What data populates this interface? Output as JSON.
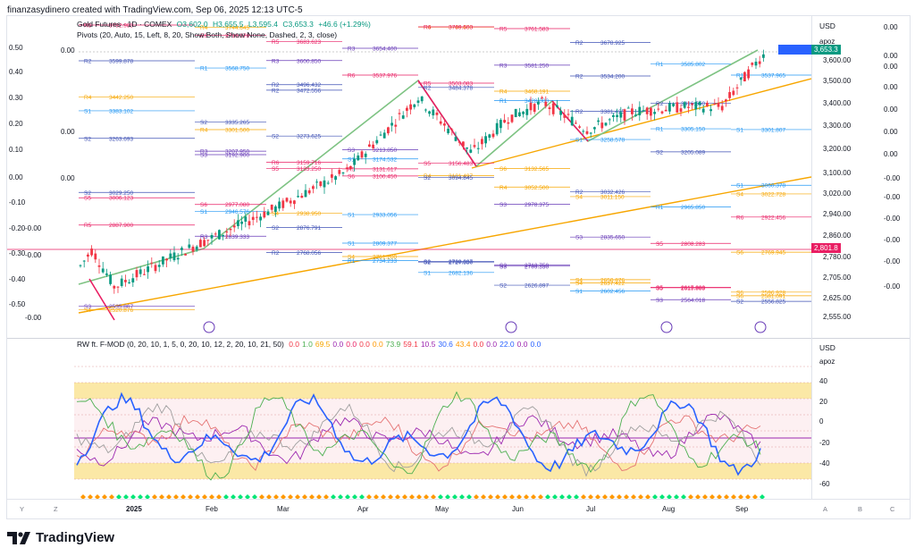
{
  "header": {
    "text": "finanzasydinero created with TradingView.com, Sep 06, 2025 12:13 UTC-5"
  },
  "legend": {
    "title": "Gold Futures · 1D · COMEX",
    "open": "O3,602.0",
    "high": "H3,655.5",
    "low": "L3,595.4",
    "close": "C3,653.3",
    "change": "+46.6 (+1.29%)",
    "pivots": "Pivots (20, Auto, 15, Left, 8, 20, Show Both, Show None, Dashed, 2, 3, close)"
  },
  "osc_legend": {
    "name": "RW ft. F-MOD (0, 20, 10, 1, 5, 0, 20, 10, 12, 2, 20, 10, 21, 50)",
    "values": [
      {
        "v": "0.0",
        "c": "#f23645"
      },
      {
        "v": "1.0",
        "c": "#4caf50"
      },
      {
        "v": "69.5",
        "c": "#f7a600"
      },
      {
        "v": "0.0",
        "c": "#9c27b0"
      },
      {
        "v": "0.0",
        "c": "#e91e63"
      },
      {
        "v": "0.0",
        "c": "#f23645"
      },
      {
        "v": "0.0",
        "c": "#ff9800"
      },
      {
        "v": "73.9",
        "c": "#4caf50"
      },
      {
        "v": "59.1",
        "c": "#f23645"
      },
      {
        "v": "10.5",
        "c": "#9c27b0"
      },
      {
        "v": "30.6",
        "c": "#2962ff"
      },
      {
        "v": "43.4",
        "c": "#ff9800"
      },
      {
        "v": "0.0",
        "c": "#f23645"
      },
      {
        "v": "0.0",
        "c": "#9c27b0"
      },
      {
        "v": "22.0",
        "c": "#2962ff"
      },
      {
        "v": "0.0",
        "c": "#9c27b0"
      },
      {
        "v": "0.0",
        "c": "#2962ff"
      }
    ]
  },
  "right_axis": {
    "currency": "USD",
    "scale": "apoz",
    "prices": [
      "3,600.00",
      "3,500.00",
      "3,400.00",
      "3,300.00",
      "3,200.00",
      "3,100.00",
      "3,020.00",
      "2,940.00",
      "2,860.00",
      "2,780.00",
      "2,705.00",
      "2,625.00",
      "2,555.00"
    ],
    "current_tag": "3,653.3",
    "current_sub": "17:20:25",
    "pivot_tag": "2,801.8",
    "osc_ticks": [
      "40",
      "20",
      "0",
      "-20",
      "-40",
      "-60"
    ],
    "outer_values": [
      "0.00",
      "0.00",
      "0.00",
      "0.00",
      "0.00",
      "0.00",
      "0.00",
      "-0.00",
      "-0.00",
      "-0.00",
      "-0.00",
      "-0.00",
      "-0.00"
    ]
  },
  "left_scale": [
    "0.50",
    "0.40",
    "0.30",
    "0.20",
    "0.10",
    "0.00",
    "-0.10",
    "-0.20",
    "-0.30",
    "-0.40",
    "-0.50"
  ],
  "left_zero_labels": [
    "0.00",
    "0.00",
    "0.00",
    "-0.00",
    "-0.00",
    "-0.00"
  ],
  "x_axis": {
    "labels": [
      "2025",
      "Feb",
      "Mar",
      "Apr",
      "May",
      "Jun",
      "Jul",
      "Aug",
      "Sep"
    ],
    "corner_left": [
      "Y",
      "Z"
    ],
    "corner_right": [
      "A",
      "B",
      "C"
    ]
  },
  "pivot_labels": [
    {
      "t": "R4",
      "p": "3442.250",
      "c": "#f7a600"
    },
    {
      "t": "R3",
      "p": "3207.950",
      "c": "#673ab7"
    },
    {
      "t": "R6",
      "p": "3159.716",
      "c": "#e91e63"
    },
    {
      "t": "R5",
      "p": "3131.617",
      "c": "#e91e63"
    },
    {
      "t": "R4",
      "p": "3101.497",
      "c": "#f7a600"
    },
    {
      "t": "R4",
      "p": "3052.500",
      "c": "#f7a600"
    },
    {
      "t": "R2",
      "p": "3032.426",
      "c": "#3f51b5"
    },
    {
      "t": "R1",
      "p": "2965.850",
      "c": "#2196f3"
    },
    {
      "t": "R6",
      "p": "2922.456",
      "c": "#e91e63"
    },
    {
      "t": "R5",
      "p": "2887.900",
      "c": "#e91e63"
    },
    {
      "t": "R3",
      "p": "2839.333",
      "c": "#673ab7"
    },
    {
      "t": "R2",
      "p": "2768.056",
      "c": "#3f51b5"
    },
    {
      "t": "R1",
      "p": "2734.233",
      "c": "#2196f3"
    },
    {
      "t": "S1",
      "p": "2682.136",
      "c": "#2196f3"
    },
    {
      "t": "S2",
      "p": "2626.897",
      "c": "#3f51b5"
    },
    {
      "t": "S1",
      "p": "2602.456",
      "c": "#2196f3"
    },
    {
      "t": "S3",
      "p": "2564.018",
      "c": "#673ab7"
    },
    {
      "t": "S2",
      "p": "2556.825",
      "c": "#3f51b5"
    },
    {
      "t": "S3",
      "p": "2535.867",
      "c": "#673ab7"
    },
    {
      "t": "R4",
      "p": "3301.500",
      "c": "#f7a600"
    },
    {
      "t": "R3",
      "p": "3600.850",
      "c": "#673ab7"
    },
    {
      "t": "R6",
      "p": "3537.976",
      "c": "#e91e63"
    },
    {
      "t": "R5",
      "p": "3503.083",
      "c": "#e91e63"
    },
    {
      "t": "R4",
      "p": "3468.191",
      "c": "#f7a600"
    },
    {
      "t": "R2",
      "p": "3381.425",
      "c": "#3f51b5"
    },
    {
      "t": "R1",
      "p": "3305.150",
      "c": "#2196f3"
    },
    {
      "t": "S1",
      "p": "3060.378",
      "c": "#2196f3"
    },
    {
      "t": "S2",
      "p": "3029.250",
      "c": "#3f51b5"
    },
    {
      "t": "S1",
      "p": "2946.576",
      "c": "#2196f3"
    },
    {
      "t": "S2",
      "p": "2876.791",
      "c": "#3f51b5"
    },
    {
      "t": "S1",
      "p": "2809.377",
      "c": "#2196f3"
    },
    {
      "t": "S2",
      "p": "2727.350",
      "c": "#3f51b5"
    },
    {
      "t": "S3",
      "p": "2709.350",
      "c": "#673ab7"
    },
    {
      "t": "S4",
      "p": "2637.422",
      "c": "#f7a600"
    },
    {
      "t": "S5",
      "p": "2617.300",
      "c": "#e91e63"
    },
    {
      "t": "S6",
      "p": "2596.928",
      "c": "#f7a600"
    },
    {
      "t": "R2",
      "p": "3599.878",
      "c": "#3f51b5"
    },
    {
      "t": "R1",
      "p": "3568.750",
      "c": "#2196f3"
    },
    {
      "t": "R2",
      "p": "3472.556",
      "c": "#3f51b5"
    },
    {
      "t": "S1",
      "p": "2933.056",
      "c": "#2196f3"
    },
    {
      "t": "S2",
      "p": "2730.037",
      "c": "#3f51b5"
    },
    {
      "t": "S3",
      "p": "2713.750",
      "c": "#673ab7"
    },
    {
      "t": "S4",
      "p": "2650.876",
      "c": "#f7a600"
    },
    {
      "t": "S5",
      "p": "2615.983",
      "c": "#e91e63"
    },
    {
      "t": "S6",
      "p": "2581.091",
      "c": "#f7a600"
    },
    {
      "t": "R5",
      "p": "3782.983",
      "c": "#e91e63"
    },
    {
      "t": "R4",
      "p": "3744.645",
      "c": "#f7a600"
    },
    {
      "t": "R2",
      "p": "3496.432",
      "c": "#3f51b5"
    },
    {
      "t": "S1",
      "p": "3174.532",
      "c": "#2196f3"
    },
    {
      "t": "S2",
      "p": "3094.845",
      "c": "#3f51b5"
    },
    {
      "t": "S3",
      "p": "2978.375",
      "c": "#673ab7"
    },
    {
      "t": "S3",
      "p": "2835.650",
      "c": "#673ab7"
    },
    {
      "t": "S5",
      "p": "2808.283",
      "c": "#e91e63"
    },
    {
      "t": "S6",
      "p": "2769.945",
      "c": "#f7a600"
    },
    {
      "t": "S4",
      "p": "2520.876",
      "c": "#f7a600"
    },
    {
      "t": "R6",
      "p": "3710.178",
      "c": "#e91e63"
    },
    {
      "t": "R5",
      "p": "3683.623",
      "c": "#e91e63"
    },
    {
      "t": "R3",
      "p": "3654.400",
      "c": "#673ab7"
    },
    {
      "t": "R2",
      "p": "3484.378",
      "c": "#3f51b5"
    },
    {
      "t": "R1",
      "p": "3428.000",
      "c": "#2196f3"
    },
    {
      "t": "S1",
      "p": "3258.578",
      "c": "#2196f3"
    },
    {
      "t": "S2",
      "p": "3205.089",
      "c": "#3f51b5"
    },
    {
      "t": "S4",
      "p": "3022.728",
      "c": "#f7a600"
    },
    {
      "t": "S5",
      "p": "3006.123",
      "c": "#e91e63"
    },
    {
      "t": "S6",
      "p": "2977.080",
      "c": "#e91e63"
    },
    {
      "t": "S4",
      "p": "2938.950",
      "c": "#f7a600"
    },
    {
      "t": "S4",
      "p": "2751.200",
      "c": "#f7a600"
    },
    {
      "t": "R4",
      "p": "3746.450",
      "c": "#f7a600"
    },
    {
      "t": "R3",
      "p": "3581.250",
      "c": "#673ab7"
    },
    {
      "t": "R2",
      "p": "3534.200",
      "c": "#3f51b5"
    },
    {
      "t": "R2",
      "p": "3416.550",
      "c": "#3f51b5"
    },
    {
      "t": "S1",
      "p": "3301.807",
      "c": "#2196f3"
    },
    {
      "t": "S2",
      "p": "3263.693",
      "c": "#3f51b5"
    },
    {
      "t": "S3",
      "p": "3192.900",
      "c": "#673ab7"
    },
    {
      "t": "S5",
      "p": "3133.250",
      "c": "#e91e63"
    },
    {
      "t": "S6",
      "p": "3100.450",
      "c": "#e91e63"
    },
    {
      "t": "R6",
      "p": "3789.503",
      "c": "#e91e63"
    },
    {
      "t": "R5",
      "p": "3761.583",
      "c": "#e91e63"
    },
    {
      "t": "R2",
      "p": "3678.925",
      "c": "#3f51b5"
    },
    {
      "t": "R1",
      "p": "3585.802",
      "c": "#2196f3"
    },
    {
      "t": "R1",
      "p": "3537.965",
      "c": "#2196f3"
    },
    {
      "t": "S1",
      "p": "3383.102",
      "c": "#2196f3"
    },
    {
      "t": "S2",
      "p": "3335.265",
      "c": "#3f51b5"
    },
    {
      "t": "S2",
      "p": "3273.625",
      "c": "#3f51b5"
    },
    {
      "t": "S3",
      "p": "3213.850",
      "c": "#673ab7"
    },
    {
      "t": "S5",
      "p": "3156.483",
      "c": "#e91e63"
    },
    {
      "t": "S6",
      "p": "3132.565",
      "c": "#f7a600"
    },
    {
      "t": "S4",
      "p": "3011.150",
      "c": "#f7a600"
    }
  ],
  "brand": {
    "name": "TradingView"
  }
}
